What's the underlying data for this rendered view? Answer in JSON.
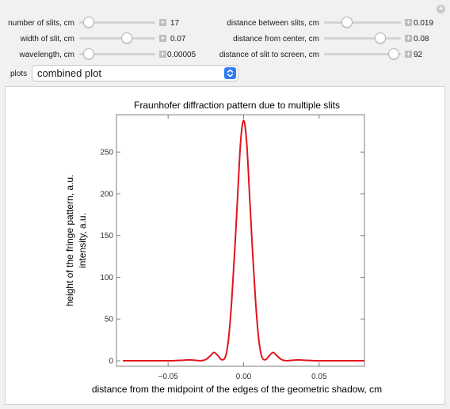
{
  "controls": {
    "number_of_slits": {
      "label": "number of slits, cm",
      "value": "17",
      "fraction": 0.12
    },
    "width_of_slit": {
      "label": "width of slit, cm",
      "value": "0.07",
      "fraction": 0.63
    },
    "wavelength": {
      "label": "wavelength, cm",
      "value": "0.00005",
      "fraction": 0.12
    },
    "distance_between_slits": {
      "label": "distance between slits, cm",
      "value": "0.019",
      "fraction": 0.3
    },
    "distance_from_center": {
      "label": "distance from center, cm",
      "value": "0.08",
      "fraction": 0.73
    },
    "distance_slit_to_screen": {
      "label": "distance of slit to screen, cm",
      "value": "92",
      "fraction": 0.91
    }
  },
  "plots": {
    "label": "plots",
    "selected": "combined plot"
  },
  "chart_data": {
    "type": "line",
    "title": "Fraunhofer diffraction pattern due to multiple slits",
    "xlabel": "distance from the midpoint of the edges of the geometric shadow, cm",
    "ylabel_line1": "height of the fringe pattern, a.u.",
    "ylabel_line2": "intensity, a.u.",
    "xlim": [
      -0.08,
      0.08
    ],
    "ylim": [
      0,
      290
    ],
    "x_ticks": [
      -0.05,
      0,
      0.05
    ],
    "x_tick_labels": [
      "−0.05",
      "0.00",
      "0.05"
    ],
    "y_ticks": [
      0,
      50,
      100,
      150,
      200,
      250
    ],
    "y_tick_labels": [
      "0",
      "50",
      "100",
      "150",
      "200",
      "250"
    ],
    "series": [
      {
        "color": "#e0141e",
        "x": [
          -0.08,
          -0.07,
          -0.06,
          -0.05,
          -0.045,
          -0.04,
          -0.037,
          -0.034,
          -0.031,
          -0.028,
          -0.025,
          -0.022,
          -0.0195,
          -0.017,
          -0.0145,
          -0.012,
          -0.01,
          -0.008,
          -0.006,
          -0.004,
          -0.002,
          0,
          0.002,
          0.004,
          0.006,
          0.008,
          0.01,
          0.012,
          0.0145,
          0.017,
          0.0195,
          0.022,
          0.025,
          0.028,
          0.031,
          0.034,
          0.037,
          0.04,
          0.045,
          0.05,
          0.06,
          0.07,
          0.08
        ],
        "values": [
          0,
          0,
          0,
          0,
          0.2,
          0.6,
          1.0,
          0.8,
          0.3,
          0.1,
          1.5,
          6,
          10,
          6,
          1.2,
          5,
          26,
          69,
          128,
          196,
          262,
          288,
          262,
          196,
          128,
          69,
          26,
          5,
          1.2,
          6,
          10,
          6,
          1.5,
          0.1,
          0.3,
          0.8,
          1.0,
          0.6,
          0.2,
          0,
          0,
          0,
          0
        ]
      }
    ]
  }
}
